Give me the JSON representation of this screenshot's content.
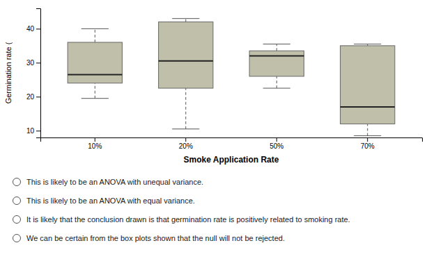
{
  "chart_data": {
    "type": "box",
    "categories": [
      "10%",
      "20%",
      "50%",
      "70%"
    ],
    "boxes": [
      {
        "low": 19.5,
        "q1": 24.0,
        "median": 26.5,
        "q3": 36.0,
        "high": 40.0
      },
      {
        "low": 10.5,
        "q1": 22.5,
        "median": 30.5,
        "q3": 42.0,
        "high": 43.0
      },
      {
        "low": 22.5,
        "q1": 26.0,
        "median": 32.0,
        "q3": 33.5,
        "high": 35.5
      },
      {
        "low": 8.5,
        "q1": 12.0,
        "median": 17.0,
        "q3": 35.0,
        "high": 35.5
      }
    ],
    "x_label": "Smoke Application Rate",
    "y_label": "Germination rate (",
    "ylim": [
      8,
      46
    ],
    "yticks": [
      10,
      20,
      30,
      40
    ],
    "color": "#c0c0aa",
    "annotations": [
      "This is likely to be an ANOVA with unequal variance.",
      "This is likely to be an ANOVA with equal variance.",
      "It is likely that the conclusion drawn is that germination rate is positively related to smoking rate.",
      "We can be certain from the box plots shown that the null will not be rejected."
    ]
  }
}
